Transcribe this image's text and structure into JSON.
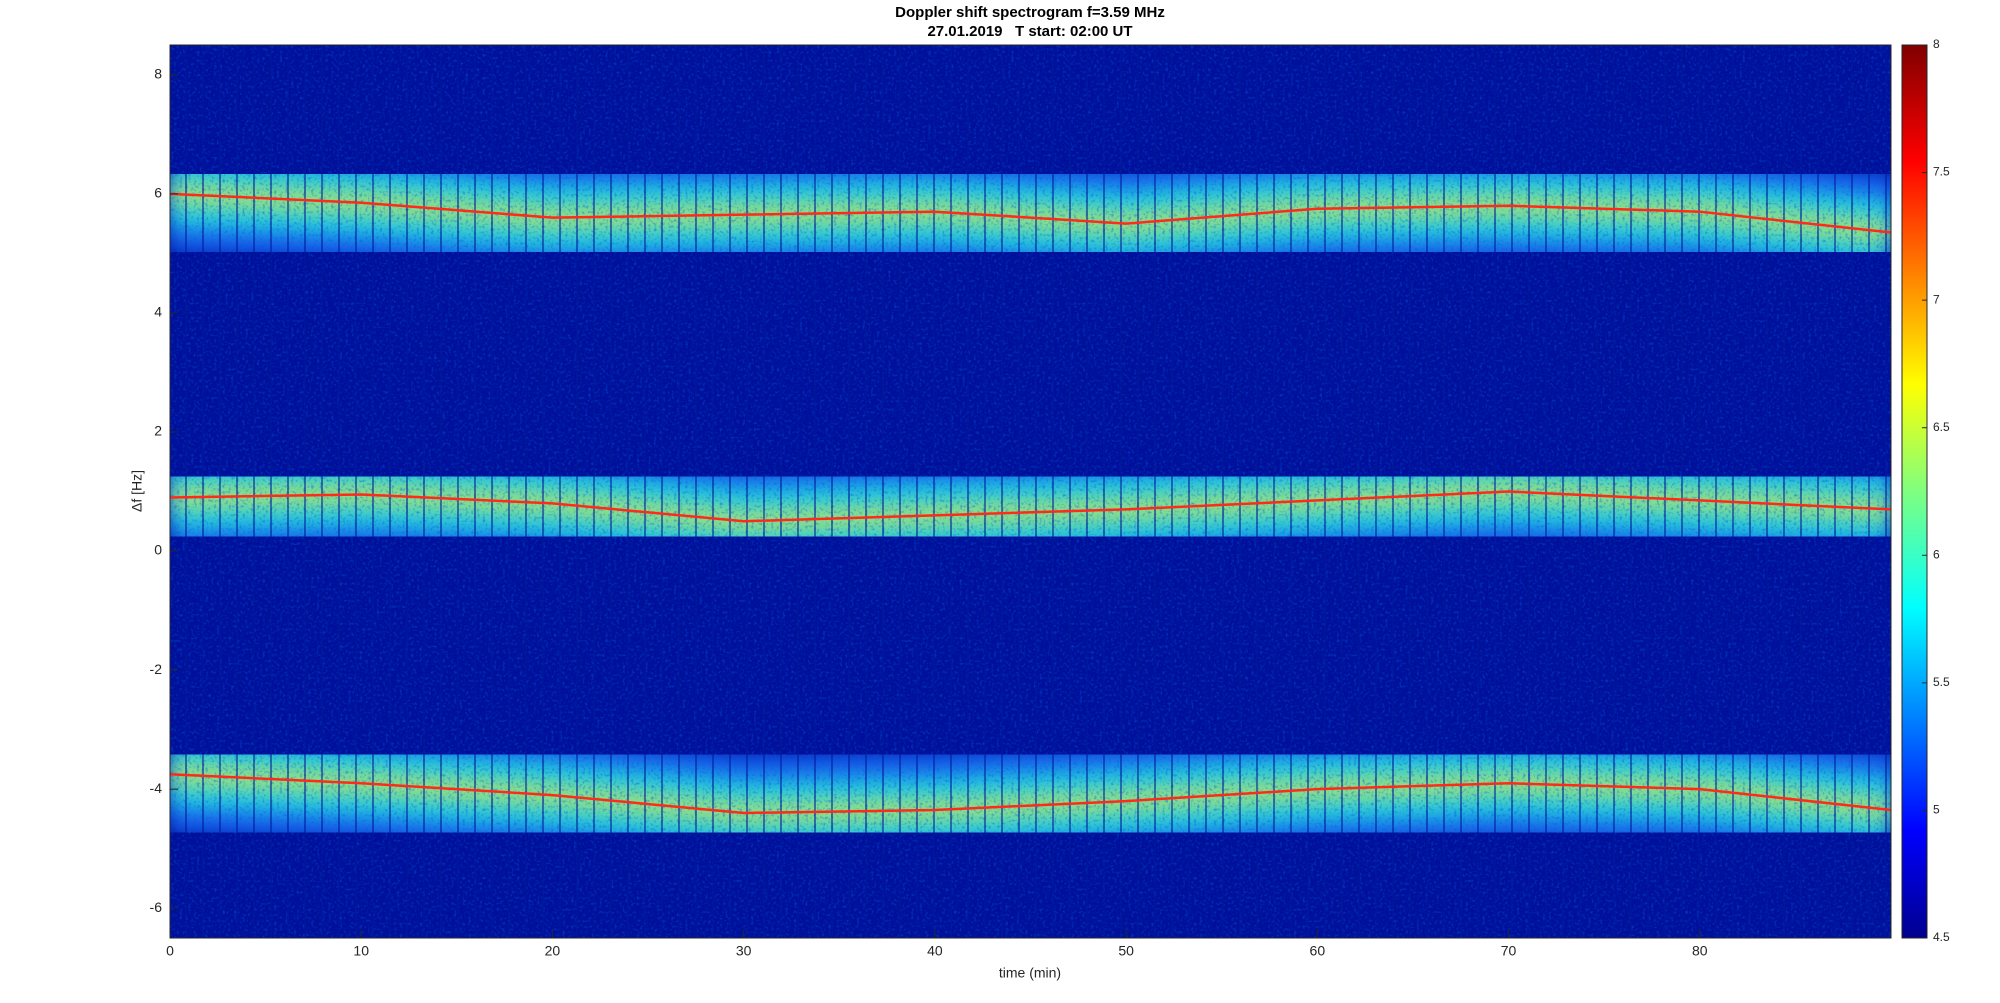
{
  "chart_data": {
    "type": "spectrogram",
    "title": "Doppler shift spectrogram f=3.59 MHz",
    "subtitle": "27.01.2019   T start: 02:00 UT",
    "x_label": "time (min)",
    "y_label": "Δf [Hz]",
    "x": [
      0,
      10,
      20,
      30,
      40,
      50,
      60,
      70,
      80,
      90
    ],
    "series": [
      {
        "color": "#ff2a1a",
        "values": [
          6.0,
          5.85,
          5.6,
          5.65,
          5.7,
          5.5,
          5.75,
          5.8,
          5.7,
          5.35
        ]
      },
      {
        "color": "#ff2a1a",
        "values": [
          0.9,
          0.95,
          0.8,
          0.5,
          0.6,
          0.7,
          0.85,
          1.0,
          0.85,
          0.7
        ]
      },
      {
        "color": "#ff2a1a",
        "values": [
          -3.75,
          -3.9,
          -4.1,
          -4.4,
          -4.35,
          -4.2,
          -4.0,
          -3.9,
          -4.0,
          -4.35
        ]
      }
    ],
    "xlim": [
      0,
      90
    ],
    "xticks": [
      0,
      10,
      20,
      30,
      40,
      50,
      60,
      70,
      80
    ],
    "ylim": [
      -6.5,
      8.5
    ],
    "yticks": [
      -6,
      -4,
      -2,
      0,
      2,
      4,
      6,
      8
    ],
    "clim": [
      4.5,
      8
    ],
    "cticks": [
      4.5,
      5,
      5.5,
      6,
      6.5,
      7,
      7.5,
      8
    ],
    "colormap": "jet"
  }
}
